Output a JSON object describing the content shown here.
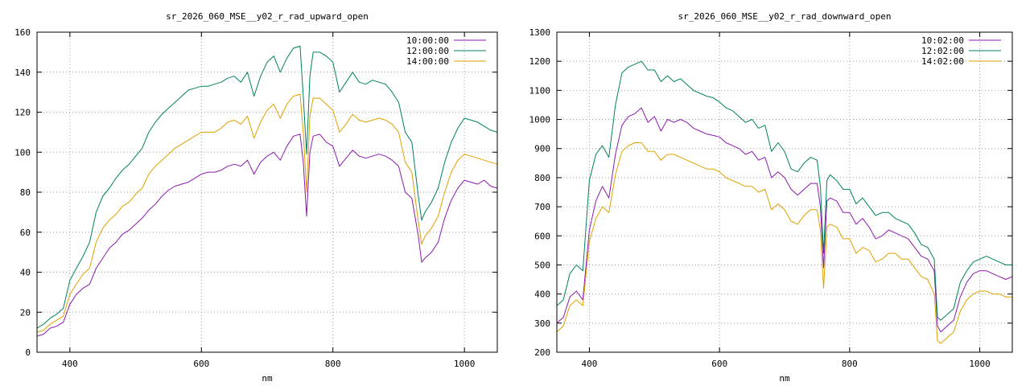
{
  "chart_data": [
    {
      "type": "line",
      "title": "sr_2026_060_MSE__y02_r_rad_upward_open",
      "xlabel": "nm",
      "ylabel": "",
      "xlim": [
        350,
        1050
      ],
      "ylim": [
        0,
        160
      ],
      "xticks": [
        400,
        600,
        800,
        1000
      ],
      "yticks": [
        0,
        20,
        40,
        60,
        80,
        100,
        120,
        140,
        160
      ],
      "grid": true,
      "legend_position": "top-right",
      "x": [
        350,
        360,
        370,
        380,
        390,
        400,
        410,
        420,
        430,
        440,
        450,
        460,
        470,
        480,
        490,
        500,
        510,
        520,
        530,
        540,
        550,
        560,
        570,
        580,
        590,
        600,
        610,
        620,
        630,
        640,
        650,
        660,
        670,
        680,
        690,
        700,
        710,
        720,
        730,
        740,
        750,
        755,
        760,
        765,
        770,
        780,
        790,
        800,
        810,
        820,
        830,
        840,
        850,
        860,
        870,
        880,
        890,
        900,
        910,
        920,
        930,
        935,
        940,
        950,
        960,
        970,
        980,
        990,
        1000,
        1010,
        1020,
        1030,
        1040,
        1050
      ],
      "series": [
        {
          "name": "10:00:00",
          "color": "#8b1aac",
          "values": [
            8,
            9,
            12,
            13,
            15,
            24,
            29,
            32,
            34,
            42,
            47,
            52,
            55,
            59,
            61,
            64,
            67,
            71,
            74,
            78,
            81,
            83,
            84,
            85,
            87,
            89,
            90,
            90,
            91,
            93,
            94,
            93,
            96,
            89,
            95,
            98,
            100,
            96,
            103,
            108,
            109,
            95,
            68,
            100,
            108,
            109,
            105,
            103,
            93,
            97,
            101,
            98,
            97,
            98,
            99,
            98,
            96,
            93,
            80,
            77,
            58,
            45,
            47,
            50,
            55,
            67,
            76,
            82,
            86,
            85,
            84,
            86,
            83,
            82
          ]
        },
        {
          "name": "12:00:00",
          "color": "#008060",
          "values": [
            12,
            14,
            17,
            19,
            22,
            36,
            42,
            48,
            55,
            70,
            78,
            82,
            87,
            91,
            94,
            98,
            102,
            110,
            115,
            119,
            122,
            125,
            128,
            131,
            132,
            133,
            133,
            134,
            135,
            137,
            138,
            135,
            140,
            128,
            138,
            145,
            148,
            140,
            147,
            152,
            153,
            128,
            99,
            138,
            150,
            150,
            148,
            145,
            130,
            135,
            140,
            135,
            134,
            136,
            135,
            134,
            130,
            125,
            110,
            105,
            78,
            66,
            70,
            75,
            82,
            95,
            105,
            112,
            117,
            116,
            115,
            113,
            111,
            110
          ]
        },
        {
          "name": "14:00:00",
          "color": "#e0a000",
          "values": [
            10,
            11,
            14,
            16,
            18,
            29,
            34,
            39,
            42,
            55,
            62,
            66,
            69,
            73,
            75,
            79,
            82,
            89,
            93,
            96,
            99,
            102,
            104,
            106,
            108,
            110,
            110,
            110,
            112,
            115,
            116,
            114,
            118,
            107,
            115,
            121,
            124,
            117,
            124,
            128,
            129,
            110,
            80,
            118,
            127,
            127,
            124,
            121,
            110,
            114,
            119,
            116,
            115,
            116,
            117,
            116,
            114,
            110,
            95,
            90,
            65,
            54,
            58,
            62,
            68,
            80,
            90,
            96,
            99,
            98,
            97,
            96,
            95,
            94
          ]
        }
      ]
    },
    {
      "type": "line",
      "title": "sr_2026_060_MSE__y02_r_rad_downward_open",
      "xlabel": "nm",
      "ylabel": "",
      "xlim": [
        350,
        1050
      ],
      "ylim": [
        200,
        1300
      ],
      "xticks": [
        400,
        600,
        800,
        1000
      ],
      "yticks": [
        200,
        300,
        400,
        500,
        600,
        700,
        800,
        900,
        1000,
        1100,
        1200,
        1300
      ],
      "grid": true,
      "legend_position": "top-right",
      "x": [
        350,
        360,
        370,
        380,
        390,
        400,
        410,
        420,
        430,
        440,
        450,
        460,
        470,
        480,
        490,
        500,
        510,
        520,
        530,
        540,
        550,
        560,
        570,
        580,
        590,
        600,
        610,
        620,
        630,
        640,
        650,
        660,
        670,
        680,
        690,
        700,
        710,
        720,
        730,
        740,
        750,
        755,
        760,
        765,
        770,
        780,
        790,
        800,
        810,
        820,
        830,
        840,
        850,
        860,
        870,
        880,
        890,
        900,
        910,
        920,
        930,
        935,
        940,
        950,
        960,
        970,
        980,
        990,
        1000,
        1010,
        1020,
        1030,
        1040,
        1050
      ],
      "series": [
        {
          "name": "10:02:00",
          "color": "#8b1aac",
          "values": [
            300,
            320,
            390,
            410,
            380,
            620,
            720,
            770,
            730,
            880,
            980,
            1010,
            1020,
            1040,
            990,
            1010,
            960,
            1000,
            990,
            1000,
            990,
            970,
            960,
            950,
            945,
            940,
            920,
            910,
            900,
            880,
            890,
            860,
            870,
            800,
            820,
            800,
            760,
            740,
            760,
            780,
            780,
            700,
            490,
            720,
            730,
            720,
            680,
            680,
            640,
            660,
            630,
            590,
            600,
            620,
            610,
            600,
            590,
            560,
            530,
            520,
            480,
            290,
            270,
            290,
            310,
            390,
            440,
            470,
            480,
            480,
            470,
            460,
            450,
            460
          ]
        },
        {
          "name": "12:02:00",
          "color": "#008060",
          "values": [
            360,
            380,
            470,
            500,
            480,
            790,
            880,
            910,
            870,
            1050,
            1160,
            1180,
            1190,
            1200,
            1170,
            1170,
            1130,
            1150,
            1130,
            1140,
            1120,
            1100,
            1090,
            1080,
            1075,
            1060,
            1040,
            1030,
            1010,
            990,
            1000,
            970,
            980,
            890,
            920,
            890,
            830,
            820,
            850,
            870,
            860,
            770,
            540,
            790,
            810,
            790,
            760,
            760,
            710,
            730,
            700,
            670,
            680,
            680,
            660,
            650,
            640,
            610,
            570,
            560,
            520,
            320,
            310,
            330,
            350,
            440,
            480,
            510,
            520,
            530,
            520,
            510,
            500,
            500
          ]
        },
        {
          "name": "14:02:00",
          "color": "#e0a000",
          "values": [
            270,
            290,
            360,
            380,
            360,
            580,
            660,
            700,
            680,
            810,
            890,
            910,
            920,
            920,
            890,
            890,
            860,
            880,
            880,
            870,
            860,
            850,
            840,
            830,
            830,
            820,
            800,
            790,
            780,
            770,
            770,
            750,
            760,
            690,
            710,
            690,
            650,
            640,
            670,
            690,
            690,
            620,
            420,
            630,
            640,
            630,
            590,
            590,
            540,
            560,
            550,
            510,
            520,
            540,
            540,
            520,
            520,
            490,
            460,
            450,
            400,
            240,
            230,
            250,
            270,
            340,
            380,
            400,
            410,
            410,
            400,
            400,
            390,
            390
          ]
        }
      ]
    }
  ]
}
